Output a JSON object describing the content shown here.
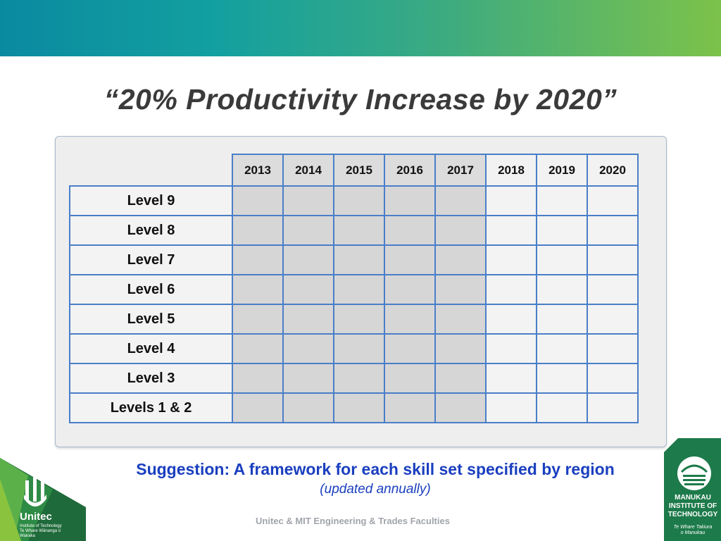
{
  "slide": {
    "title": "“20% Productivity Increase by 2020”"
  },
  "table": {
    "years": [
      "2013",
      "2014",
      "2015",
      "2016",
      "2017",
      "2018",
      "2019",
      "2020"
    ],
    "shaded_years": [
      "2013",
      "2014",
      "2015",
      "2016",
      "2017"
    ],
    "levels": [
      "Level 9",
      "Level 8",
      "Level 7",
      "Level 6",
      "Level 5",
      "Level 4",
      "Level 3",
      "Levels 1 & 2"
    ]
  },
  "suggestion": {
    "text": "Suggestion:  A framework for each skill set specified by region",
    "subtext": "(updated annually)"
  },
  "footer": {
    "text": "Unitec & MIT Engineering & Trades Faculties"
  },
  "logos": {
    "unitec": {
      "name": "Unitec",
      "subtitle": "Institute of Technology Te Whare Wānanga o Wairaka"
    },
    "mit": {
      "name_line1": "MANUKAU",
      "name_line2": "INSTITUTE OF",
      "name_line3": "TECHNOLOGY",
      "subtitle_line1": "Te Whare Takiura",
      "subtitle_line2": "o Manukau"
    }
  },
  "colors": {
    "banner_start": "#0a8aa0",
    "banner_end": "#7cc24a",
    "table_border": "#4a7ec8",
    "shaded_cell": "#d6d6d6",
    "suggestion_text": "#1a3fbf"
  }
}
